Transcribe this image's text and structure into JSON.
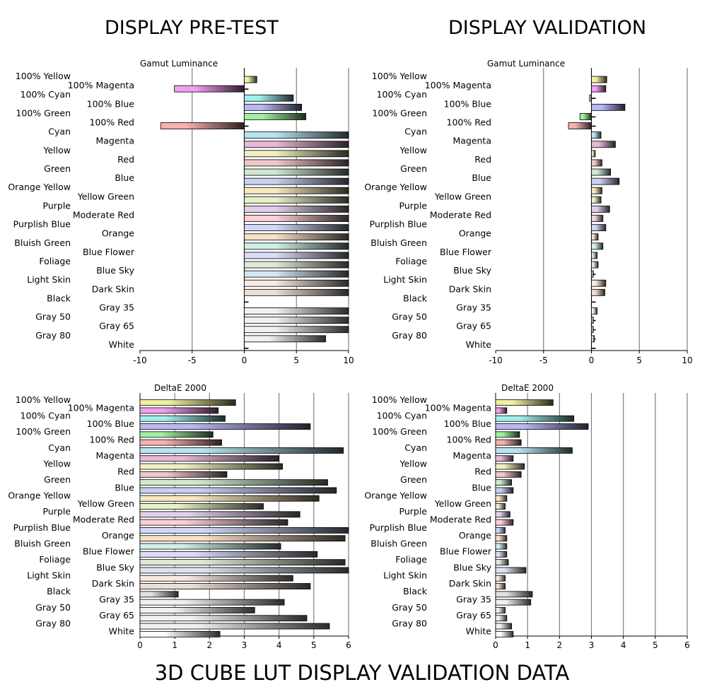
{
  "titles": {
    "pre_test": "DISPLAY PRE-TEST",
    "validation": "DISPLAY VALIDATION",
    "main": "3D CUBE LUT  DISPLAY VALIDATION DATA"
  },
  "colors": {
    "100% Yellow": "#f0f0a0",
    "100% Magenta": "#f0a0f0",
    "100% Cyan": "#a0f0f0",
    "100% Blue": "#b8b8f8",
    "100% Green": "#a0f0a0",
    "100% Red": "#f8b0b0",
    "Cyan": "#b8e4f0",
    "Magenta": "#e8b8d8",
    "Yellow": "#f0f0c0",
    "Red": "#f0c8c8",
    "Green": "#d0e8d0",
    "Blue": "#c8d0f0",
    "Orange Yellow": "#f8e8c0",
    "Yellow Green": "#e8f0c8",
    "Purple": "#e0d0e8",
    "Moderate Red": "#f8d0d8",
    "Purplish Blue": "#d0d8f8",
    "Orange": "#f8e0c8",
    "Bluish Green": "#d0f0e8",
    "Blue Flower": "#dcdcf8",
    "Foliage": "#e0e8d8",
    "Blue Sky": "#d8e4f0",
    "Light Skin": "#f8e8e0",
    "Dark Skin": "#ecdcd4",
    "Black": "#e0e0e0",
    "Gray 35": "#f0f0f0",
    "Gray 50": "#f0f0f0",
    "Gray 65": "#f0f0f0",
    "Gray 80": "#f0f0f0",
    "White": "#ffffff"
  },
  "chart_data": [
    {
      "id": "pre_luminance",
      "type": "bar",
      "orientation": "horizontal",
      "title": "Gamut Luminance",
      "xlim": [
        -10,
        10
      ],
      "xticks": [
        -10,
        -5,
        0,
        5,
        10
      ],
      "grid": true,
      "categories": [
        "100% Yellow",
        "100% Magenta",
        "100% Cyan",
        "100% Blue",
        "100% Green",
        "100% Red",
        "Cyan",
        "Magenta",
        "Yellow",
        "Red",
        "Green",
        "Blue",
        "Orange Yellow",
        "Yellow Green",
        "Purple",
        "Moderate Red",
        "Purplish Blue",
        "Orange",
        "Bluish Green",
        "Blue Flower",
        "Foliage",
        "Blue Sky",
        "Light Skin",
        "Dark Skin",
        "Black",
        "Gray 35",
        "Gray 50",
        "Gray 65",
        "Gray 80",
        "White"
      ],
      "values": [
        1.2,
        -6.7,
        4.7,
        5.5,
        5.9,
        -8.0,
        10,
        10,
        10,
        10,
        10,
        10,
        10,
        10,
        10,
        10,
        10,
        10,
        10,
        10,
        10,
        10,
        10,
        10,
        0,
        10,
        10,
        10,
        7.8,
        0
      ]
    },
    {
      "id": "val_luminance",
      "type": "bar",
      "orientation": "horizontal",
      "title": "Gamut Luminance",
      "xlim": [
        -10,
        10
      ],
      "xticks": [
        -10,
        -5,
        0,
        5,
        10
      ],
      "grid": true,
      "categories": [
        "100% Yellow",
        "100% Magenta",
        "100% Cyan",
        "100% Blue",
        "100% Green",
        "100% Red",
        "Cyan",
        "Magenta",
        "Yellow",
        "Red",
        "Green",
        "Blue",
        "Orange Yellow",
        "Yellow Green",
        "Purple",
        "Moderate Red",
        "Purplish Blue",
        "Orange",
        "Bluish Green",
        "Blue Flower",
        "Foliage",
        "Blue Sky",
        "Light Skin",
        "Dark Skin",
        "Black",
        "Gray 35",
        "Gray 50",
        "Gray 65",
        "Gray 80",
        "White"
      ],
      "values": [
        1.6,
        1.5,
        -0.2,
        3.5,
        -1.2,
        -2.4,
        1.0,
        2.5,
        0.4,
        1.1,
        2.0,
        2.9,
        1.1,
        1.0,
        1.9,
        1.2,
        1.5,
        0.7,
        1.2,
        0.6,
        0.7,
        0.2,
        1.5,
        1.4,
        0,
        0.6,
        0.2,
        0.2,
        0.3,
        0
      ]
    },
    {
      "id": "pre_deltae",
      "type": "bar",
      "orientation": "horizontal",
      "title": "DeltaE 2000",
      "xlim": [
        0,
        6
      ],
      "xticks": [
        0,
        1,
        2,
        3,
        4,
        5,
        6
      ],
      "grid": true,
      "categories": [
        "100% Yellow",
        "100% Magenta",
        "100% Cyan",
        "100% Blue",
        "100% Green",
        "100% Red",
        "Cyan",
        "Magenta",
        "Yellow",
        "Red",
        "Green",
        "Blue",
        "Orange Yellow",
        "Yellow Green",
        "Purple",
        "Moderate Red",
        "Purplish Blue",
        "Orange",
        "Bluish Green",
        "Blue Flower",
        "Foliage",
        "Blue Sky",
        "Light Skin",
        "Dark Skin",
        "Black",
        "Gray 35",
        "Gray 50",
        "Gray 65",
        "Gray 80",
        "White"
      ],
      "values": [
        2.75,
        2.25,
        2.45,
        4.9,
        2.1,
        2.35,
        5.85,
        4.0,
        4.1,
        2.5,
        5.4,
        5.65,
        5.15,
        3.55,
        4.6,
        4.25,
        6.0,
        5.9,
        4.05,
        5.1,
        5.9,
        6.0,
        4.4,
        4.9,
        1.1,
        4.15,
        3.3,
        4.8,
        5.45,
        2.3
      ]
    },
    {
      "id": "val_deltae",
      "type": "bar",
      "orientation": "horizontal",
      "title": "DeltaE 2000",
      "xlim": [
        0,
        6
      ],
      "xticks": [
        0,
        1,
        2,
        3,
        4,
        5,
        6
      ],
      "grid": true,
      "categories": [
        "100% Yellow",
        "100% Magenta",
        "100% Cyan",
        "100% Blue",
        "100% Green",
        "100% Red",
        "Cyan",
        "Magenta",
        "Yellow",
        "Red",
        "Green",
        "Blue",
        "Orange Yellow",
        "Yellow Green",
        "Purple",
        "Moderate Red",
        "Purplish Blue",
        "Orange",
        "Bluish Green",
        "Blue Flower",
        "Foliage",
        "Blue Sky",
        "Light Skin",
        "Dark Skin",
        "Black",
        "Gray 35",
        "Gray 50",
        "Gray 65",
        "Gray 80",
        "White"
      ],
      "values": [
        1.8,
        0.35,
        2.45,
        2.9,
        0.75,
        0.8,
        2.4,
        0.55,
        0.9,
        0.8,
        0.5,
        0.55,
        0.35,
        0.3,
        0.45,
        0.55,
        0.3,
        0.35,
        0.35,
        0.35,
        0.4,
        0.95,
        0.3,
        0.3,
        1.15,
        1.1,
        0.3,
        0.35,
        0.5,
        0.55
      ]
    }
  ]
}
